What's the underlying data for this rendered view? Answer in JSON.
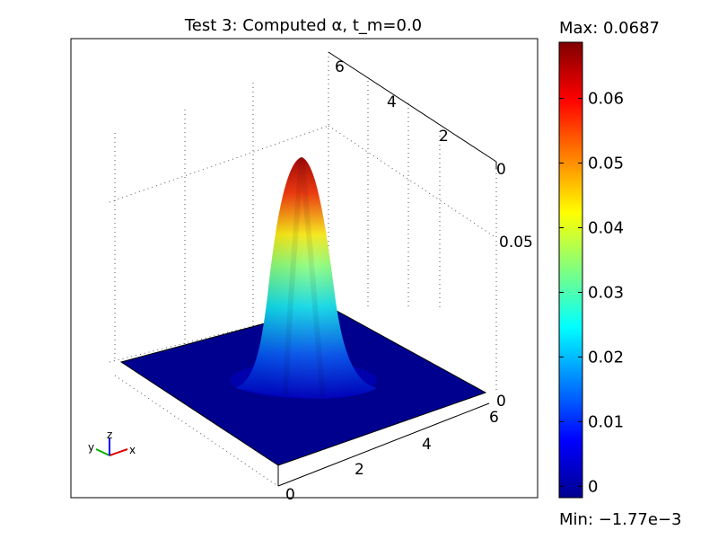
{
  "chart_data": {
    "type": "surface",
    "title": "Test 3:  Computed α, t_m=0.0",
    "colorbar": {
      "max_label": "Max: 0.0687",
      "min_label": "Min: −1.77e−3",
      "max": 0.0687,
      "min": -0.00177,
      "ticks": [
        "0.06",
        "0.05",
        "0.04",
        "0.03",
        "0.02",
        "0.01",
        "0"
      ],
      "tick_values": [
        0.06,
        0.05,
        0.04,
        0.03,
        0.02,
        0.01,
        0
      ],
      "colormap": "jet"
    },
    "axes": {
      "x_ticks": [
        "0",
        "2",
        "4",
        "6"
      ],
      "y_ticks": [
        "0",
        "2",
        "4",
        "6"
      ],
      "z_ticks": [
        "0",
        "0.05"
      ],
      "xlim": [
        0,
        6
      ],
      "ylim": [
        0,
        6
      ],
      "zlim": [
        0,
        0.0687
      ],
      "grid": true
    },
    "peak": {
      "x": 3,
      "y": 3,
      "z": 0.0687
    },
    "triad": {
      "x": "x",
      "y": "y",
      "z": "z"
    }
  }
}
